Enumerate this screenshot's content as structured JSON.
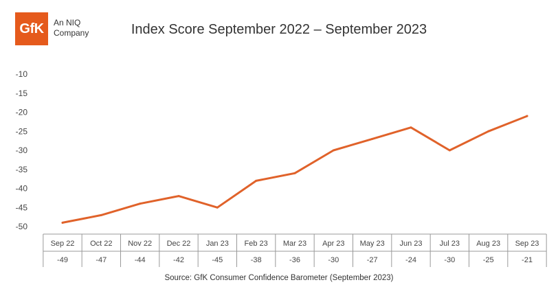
{
  "brand": {
    "logo_text": "GfK",
    "company_line1": "An NIQ",
    "company_line2": "Company"
  },
  "source": "Source: GfK Consumer Confidence Barometer (September 2023)",
  "colors": {
    "line": "#e0622a",
    "logo_bg": "#e55a1c",
    "axis": "#888888"
  },
  "chart_data": {
    "type": "line",
    "title": "Index Score September 2022 – September 2023",
    "categories": [
      "Sep 22",
      "Oct 22",
      "Nov 22",
      "Dec 22",
      "Jan 23",
      "Feb 23",
      "Mar 23",
      "Apr 23",
      "May 23",
      "Jun 23",
      "Jul 23",
      "Aug 23",
      "Sep 23"
    ],
    "series": [
      {
        "values": [
          -49,
          -47,
          -44,
          -42,
          -45,
          -38,
          -36,
          -30,
          -27,
          -24,
          -30,
          -25,
          -21
        ]
      }
    ],
    "y_ticks": [
      -10,
      -15,
      -20,
      -25,
      -30,
      -35,
      -40,
      -45,
      -50
    ],
    "ylim": [
      -50,
      -10
    ],
    "grid": false,
    "data_table": true
  }
}
